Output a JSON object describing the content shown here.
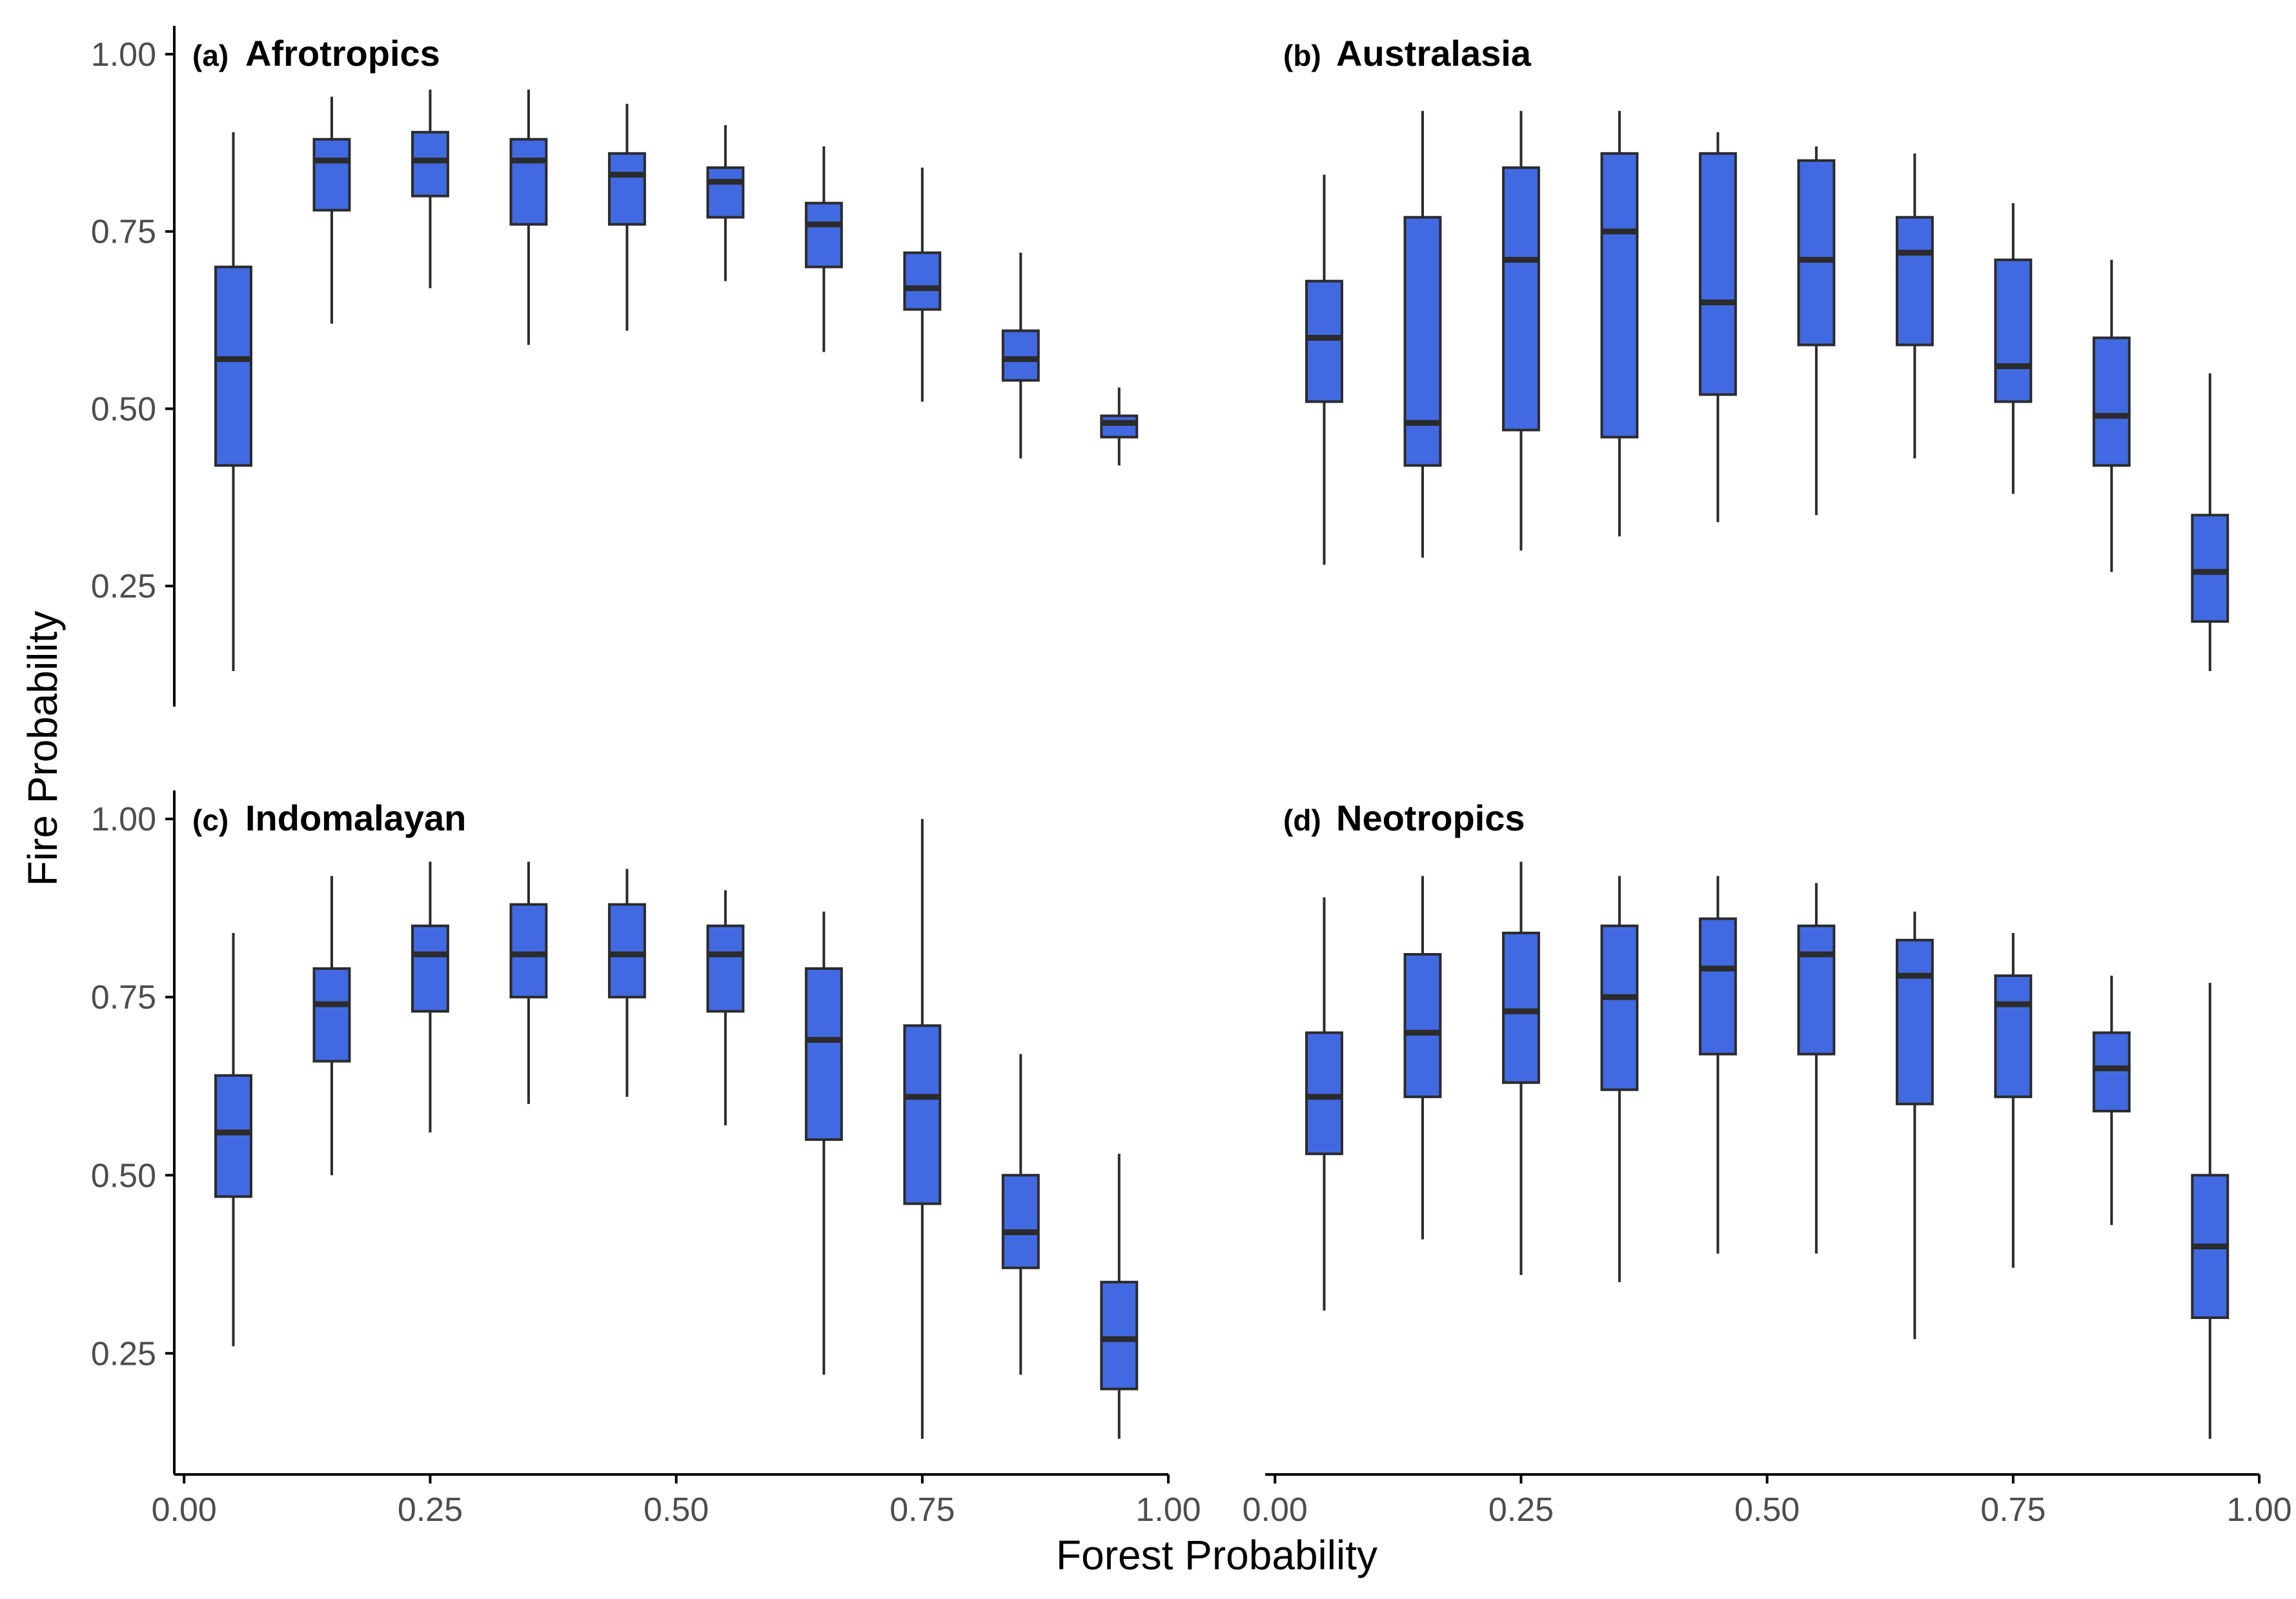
{
  "figure": {
    "xlabel": "Forest Probability",
    "ylabel": "Fire Probability"
  },
  "colors": {
    "box_fill": "#4169e1",
    "box_stroke": "#2b2b2b",
    "axis": "#000000"
  },
  "chart_data": [
    {
      "type": "boxplot",
      "tag": "(a)",
      "title": "Afrotropics",
      "x_ticks": [
        0.0,
        0.25,
        0.5,
        0.75,
        1.0
      ],
      "x_tick_labels": [
        "0.00",
        "0.25",
        "0.50",
        "0.75",
        "1.00"
      ],
      "y_ticks": [
        0.25,
        0.5,
        0.75,
        1.0
      ],
      "y_tick_labels": [
        "0.25",
        "0.50",
        "0.75",
        "1.00"
      ],
      "xlim": [
        -0.01,
        1.0
      ],
      "ylim": [
        0.08,
        1.04
      ],
      "show_x_axis": false,
      "show_y_axis": true,
      "boxes": [
        {
          "x": 0.05,
          "whisker_low": 0.13,
          "q1": 0.42,
          "median": 0.57,
          "q3": 0.7,
          "whisker_high": 0.89
        },
        {
          "x": 0.15,
          "whisker_low": 0.62,
          "q1": 0.78,
          "median": 0.85,
          "q3": 0.88,
          "whisker_high": 0.94
        },
        {
          "x": 0.25,
          "whisker_low": 0.67,
          "q1": 0.8,
          "median": 0.85,
          "q3": 0.89,
          "whisker_high": 0.95
        },
        {
          "x": 0.35,
          "whisker_low": 0.59,
          "q1": 0.76,
          "median": 0.85,
          "q3": 0.88,
          "whisker_high": 0.95
        },
        {
          "x": 0.45,
          "whisker_low": 0.61,
          "q1": 0.76,
          "median": 0.83,
          "q3": 0.86,
          "whisker_high": 0.93
        },
        {
          "x": 0.55,
          "whisker_low": 0.68,
          "q1": 0.77,
          "median": 0.82,
          "q3": 0.84,
          "whisker_high": 0.9
        },
        {
          "x": 0.65,
          "whisker_low": 0.58,
          "q1": 0.7,
          "median": 0.76,
          "q3": 0.79,
          "whisker_high": 0.87
        },
        {
          "x": 0.75,
          "whisker_low": 0.51,
          "q1": 0.64,
          "median": 0.67,
          "q3": 0.72,
          "whisker_high": 0.84
        },
        {
          "x": 0.85,
          "whisker_low": 0.43,
          "q1": 0.54,
          "median": 0.57,
          "q3": 0.61,
          "whisker_high": 0.72
        },
        {
          "x": 0.95,
          "whisker_low": 0.42,
          "q1": 0.46,
          "median": 0.48,
          "q3": 0.49,
          "whisker_high": 0.53
        }
      ]
    },
    {
      "type": "boxplot",
      "tag": "(b)",
      "title": "Australasia",
      "x_ticks": [
        0.0,
        0.25,
        0.5,
        0.75,
        1.0
      ],
      "x_tick_labels": [
        "0.00",
        "0.25",
        "0.50",
        "0.75",
        "1.00"
      ],
      "y_ticks": [
        0.25,
        0.5,
        0.75,
        1.0
      ],
      "y_tick_labels": [
        "0.25",
        "0.50",
        "0.75",
        "1.00"
      ],
      "xlim": [
        -0.01,
        1.0
      ],
      "ylim": [
        0.08,
        1.04
      ],
      "show_x_axis": false,
      "show_y_axis": false,
      "boxes": [
        {
          "x": 0.05,
          "whisker_low": 0.28,
          "q1": 0.51,
          "median": 0.6,
          "q3": 0.68,
          "whisker_high": 0.83
        },
        {
          "x": 0.15,
          "whisker_low": 0.29,
          "q1": 0.42,
          "median": 0.48,
          "q3": 0.77,
          "whisker_high": 0.92
        },
        {
          "x": 0.25,
          "whisker_low": 0.3,
          "q1": 0.47,
          "median": 0.71,
          "q3": 0.84,
          "whisker_high": 0.92
        },
        {
          "x": 0.35,
          "whisker_low": 0.32,
          "q1": 0.46,
          "median": 0.75,
          "q3": 0.86,
          "whisker_high": 0.92
        },
        {
          "x": 0.45,
          "whisker_low": 0.34,
          "q1": 0.52,
          "median": 0.65,
          "q3": 0.86,
          "whisker_high": 0.89
        },
        {
          "x": 0.55,
          "whisker_low": 0.35,
          "q1": 0.59,
          "median": 0.71,
          "q3": 0.85,
          "whisker_high": 0.87
        },
        {
          "x": 0.65,
          "whisker_low": 0.43,
          "q1": 0.59,
          "median": 0.72,
          "q3": 0.77,
          "whisker_high": 0.86
        },
        {
          "x": 0.75,
          "whisker_low": 0.38,
          "q1": 0.51,
          "median": 0.56,
          "q3": 0.71,
          "whisker_high": 0.79
        },
        {
          "x": 0.85,
          "whisker_low": 0.27,
          "q1": 0.42,
          "median": 0.49,
          "q3": 0.6,
          "whisker_high": 0.71
        },
        {
          "x": 0.95,
          "whisker_low": 0.13,
          "q1": 0.2,
          "median": 0.27,
          "q3": 0.35,
          "whisker_high": 0.55
        }
      ]
    },
    {
      "type": "boxplot",
      "tag": "(c)",
      "title": "Indomalayan",
      "x_ticks": [
        0.0,
        0.25,
        0.5,
        0.75,
        1.0
      ],
      "x_tick_labels": [
        "0.00",
        "0.25",
        "0.50",
        "0.75",
        "1.00"
      ],
      "y_ticks": [
        0.25,
        0.5,
        0.75,
        1.0
      ],
      "y_tick_labels": [
        "0.25",
        "0.50",
        "0.75",
        "1.00"
      ],
      "xlim": [
        -0.01,
        1.0
      ],
      "ylim": [
        0.08,
        1.04
      ],
      "show_x_axis": true,
      "show_y_axis": true,
      "boxes": [
        {
          "x": 0.05,
          "whisker_low": 0.26,
          "q1": 0.47,
          "median": 0.56,
          "q3": 0.64,
          "whisker_high": 0.84
        },
        {
          "x": 0.15,
          "whisker_low": 0.5,
          "q1": 0.66,
          "median": 0.74,
          "q3": 0.79,
          "whisker_high": 0.92
        },
        {
          "x": 0.25,
          "whisker_low": 0.56,
          "q1": 0.73,
          "median": 0.81,
          "q3": 0.85,
          "whisker_high": 0.94
        },
        {
          "x": 0.35,
          "whisker_low": 0.6,
          "q1": 0.75,
          "median": 0.81,
          "q3": 0.88,
          "whisker_high": 0.94
        },
        {
          "x": 0.45,
          "whisker_low": 0.61,
          "q1": 0.75,
          "median": 0.81,
          "q3": 0.88,
          "whisker_high": 0.93
        },
        {
          "x": 0.55,
          "whisker_low": 0.57,
          "q1": 0.73,
          "median": 0.81,
          "q3": 0.85,
          "whisker_high": 0.9
        },
        {
          "x": 0.65,
          "whisker_low": 0.22,
          "q1": 0.55,
          "median": 0.69,
          "q3": 0.79,
          "whisker_high": 0.87
        },
        {
          "x": 0.75,
          "whisker_low": 0.13,
          "q1": 0.46,
          "median": 0.61,
          "q3": 0.71,
          "whisker_high": 1.0
        },
        {
          "x": 0.85,
          "whisker_low": 0.22,
          "q1": 0.37,
          "median": 0.42,
          "q3": 0.5,
          "whisker_high": 0.67
        },
        {
          "x": 0.95,
          "whisker_low": 0.13,
          "q1": 0.2,
          "median": 0.27,
          "q3": 0.35,
          "whisker_high": 0.53
        }
      ]
    },
    {
      "type": "boxplot",
      "tag": "(d)",
      "title": "Neotropics",
      "x_ticks": [
        0.0,
        0.25,
        0.5,
        0.75,
        1.0
      ],
      "x_tick_labels": [
        "0.00",
        "0.25",
        "0.50",
        "0.75",
        "1.00"
      ],
      "y_ticks": [
        0.25,
        0.5,
        0.75,
        1.0
      ],
      "y_tick_labels": [
        "0.25",
        "0.50",
        "0.75",
        "1.00"
      ],
      "xlim": [
        -0.01,
        1.0
      ],
      "ylim": [
        0.08,
        1.04
      ],
      "show_x_axis": true,
      "show_y_axis": false,
      "boxes": [
        {
          "x": 0.05,
          "whisker_low": 0.31,
          "q1": 0.53,
          "median": 0.61,
          "q3": 0.7,
          "whisker_high": 0.89
        },
        {
          "x": 0.15,
          "whisker_low": 0.41,
          "q1": 0.61,
          "median": 0.7,
          "q3": 0.81,
          "whisker_high": 0.92
        },
        {
          "x": 0.25,
          "whisker_low": 0.36,
          "q1": 0.63,
          "median": 0.73,
          "q3": 0.84,
          "whisker_high": 0.94
        },
        {
          "x": 0.35,
          "whisker_low": 0.35,
          "q1": 0.62,
          "median": 0.75,
          "q3": 0.85,
          "whisker_high": 0.92
        },
        {
          "x": 0.45,
          "whisker_low": 0.39,
          "q1": 0.67,
          "median": 0.79,
          "q3": 0.86,
          "whisker_high": 0.92
        },
        {
          "x": 0.55,
          "whisker_low": 0.39,
          "q1": 0.67,
          "median": 0.81,
          "q3": 0.85,
          "whisker_high": 0.91
        },
        {
          "x": 0.65,
          "whisker_low": 0.27,
          "q1": 0.6,
          "median": 0.78,
          "q3": 0.83,
          "whisker_high": 0.87
        },
        {
          "x": 0.75,
          "whisker_low": 0.37,
          "q1": 0.61,
          "median": 0.74,
          "q3": 0.78,
          "whisker_high": 0.84
        },
        {
          "x": 0.85,
          "whisker_low": 0.43,
          "q1": 0.59,
          "median": 0.65,
          "q3": 0.7,
          "whisker_high": 0.78
        },
        {
          "x": 0.95,
          "whisker_low": 0.13,
          "q1": 0.3,
          "median": 0.4,
          "q3": 0.5,
          "whisker_high": 0.77
        }
      ]
    }
  ]
}
